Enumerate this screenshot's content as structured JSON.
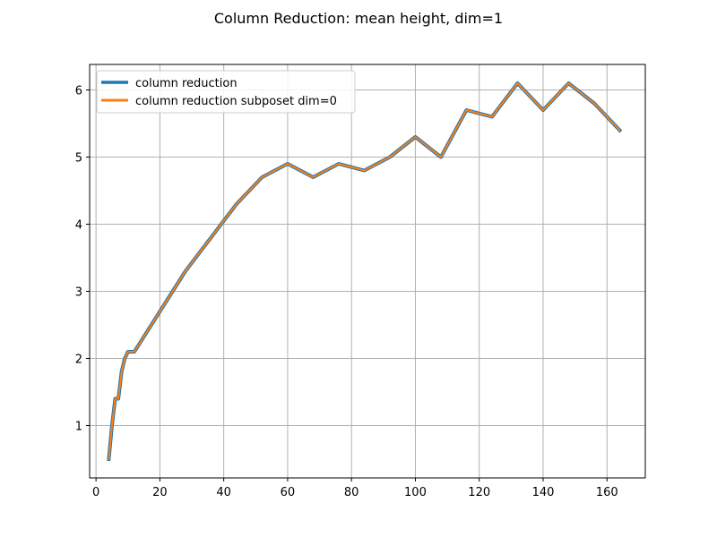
{
  "chart_data": {
    "type": "line",
    "title": "Column Reduction: mean height, dim=1",
    "xlabel": "",
    "ylabel": "",
    "xlim": [
      -2,
      172
    ],
    "ylim": [
      0.22,
      6.38
    ],
    "xticks": [
      0,
      20,
      40,
      60,
      80,
      100,
      120,
      140,
      160
    ],
    "yticks": [
      1,
      2,
      3,
      4,
      5,
      6
    ],
    "grid": true,
    "legend_position": "top-left",
    "series": [
      {
        "name": "column reduction",
        "color": "#1f77b4",
        "x": [
          4,
          5,
          6,
          7,
          8,
          9,
          10,
          12,
          20,
          28,
          36,
          44,
          52,
          60,
          68,
          76,
          84,
          92,
          100,
          108,
          116,
          124,
          132,
          140,
          148,
          156,
          164
        ],
        "y": [
          0.5,
          1.0,
          1.4,
          1.4,
          1.8,
          2.0,
          2.1,
          2.1,
          2.7,
          3.3,
          3.8,
          4.3,
          4.7,
          4.9,
          4.7,
          4.9,
          4.8,
          5.0,
          5.3,
          5.0,
          5.7,
          5.6,
          6.1,
          5.7,
          6.1,
          5.8,
          5.4
        ]
      },
      {
        "name": "column reduction subposet dim=0",
        "color": "#ff7f0e",
        "x": [
          4,
          5,
          6,
          7,
          8,
          9,
          10,
          12,
          20,
          28,
          36,
          44,
          52,
          60,
          68,
          76,
          84,
          92,
          100,
          108,
          116,
          124,
          132,
          140,
          148,
          156,
          164
        ],
        "y": [
          0.5,
          1.0,
          1.4,
          1.4,
          1.8,
          2.0,
          2.1,
          2.1,
          2.7,
          3.3,
          3.8,
          4.3,
          4.7,
          4.9,
          4.7,
          4.9,
          4.8,
          5.0,
          5.3,
          5.0,
          5.7,
          5.6,
          6.1,
          5.7,
          6.1,
          5.8,
          5.4
        ]
      }
    ]
  }
}
